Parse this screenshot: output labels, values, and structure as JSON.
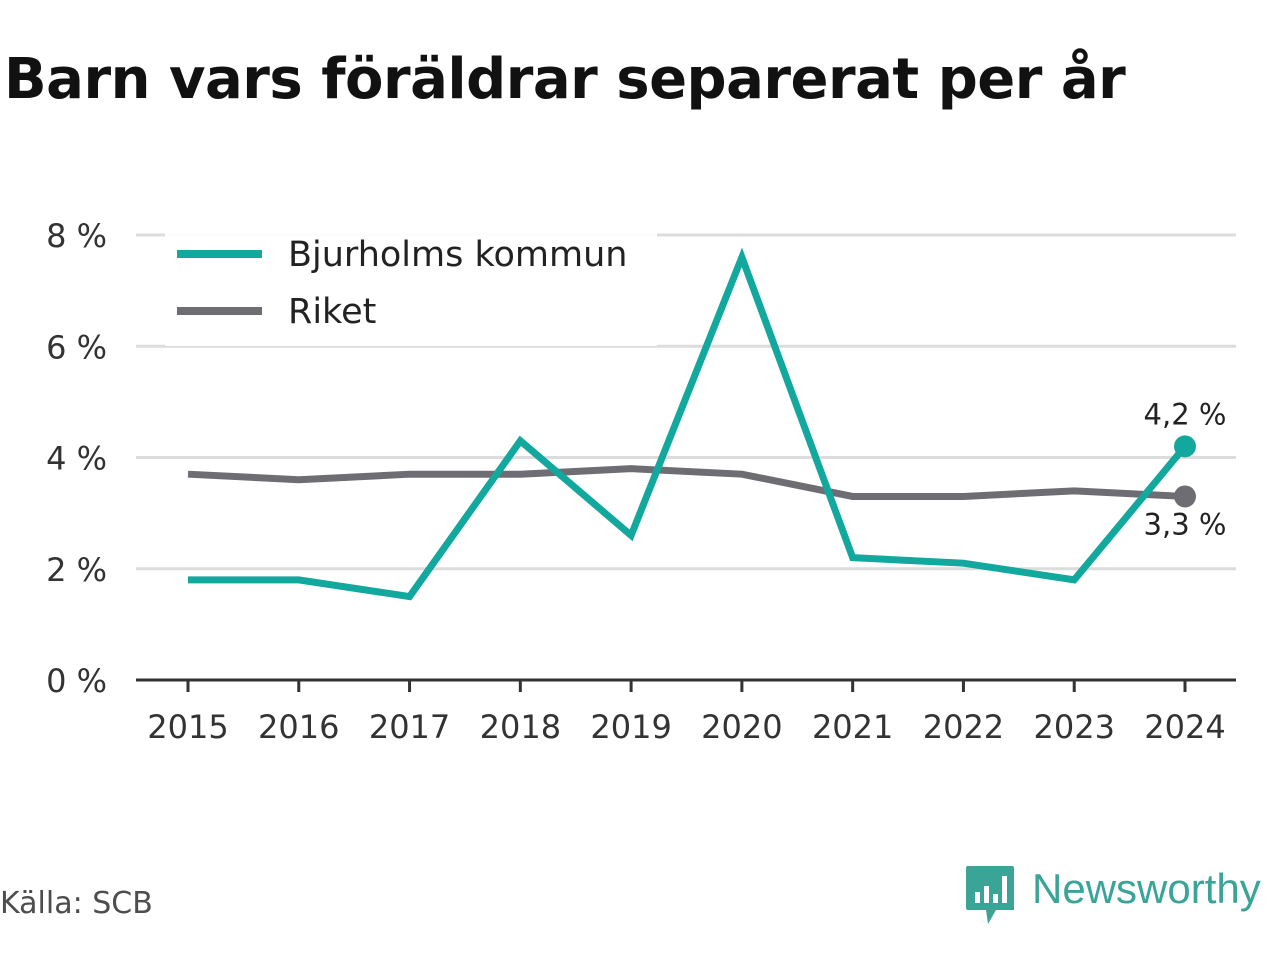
{
  "title": "Barn vars föräldrar separerat per år",
  "source": "Källa: SCB",
  "brand": "Newsworthy",
  "colors": {
    "accent": "#13a89e",
    "national": "#6e6d73",
    "grid": "#dcdcdc",
    "axis": "#333333",
    "brand": "#3aa597"
  },
  "chart_data": {
    "type": "line",
    "title": "Barn vars föräldrar separerat per år",
    "x": [
      "2015",
      "2016",
      "2017",
      "2018",
      "2019",
      "2020",
      "2021",
      "2022",
      "2023",
      "2024"
    ],
    "ylim": [
      0,
      8
    ],
    "yticks": [
      0,
      2,
      4,
      6,
      8
    ],
    "ytick_labels": [
      "0 %",
      "2 %",
      "4 %",
      "6 %",
      "8 %"
    ],
    "grid": true,
    "legend_position": "top-left",
    "series": [
      {
        "name": "Bjurholms kommun",
        "color": "#13a89e",
        "values": [
          1.8,
          1.8,
          1.5,
          4.3,
          2.6,
          7.6,
          2.2,
          2.1,
          1.8,
          4.2
        ],
        "end_label": "4,2 %"
      },
      {
        "name": "Riket",
        "color": "#6e6d73",
        "values": [
          3.7,
          3.6,
          3.7,
          3.7,
          3.8,
          3.7,
          3.3,
          3.3,
          3.4,
          3.3
        ],
        "end_label": "3,3 %"
      }
    ]
  }
}
